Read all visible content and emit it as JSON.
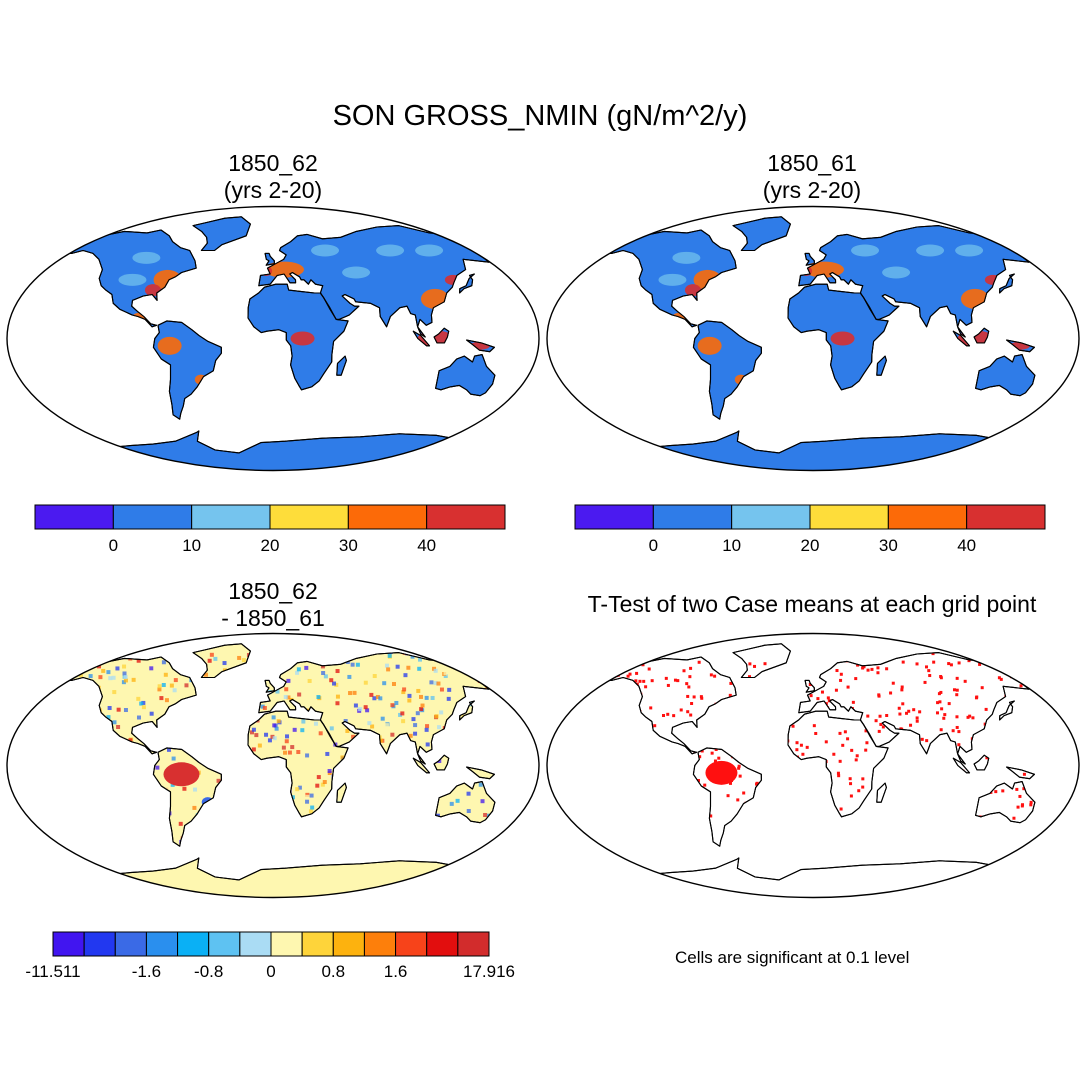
{
  "title": "SON GROSS_NMIN (gN/m^2/y)",
  "panels": [
    {
      "id": "p1",
      "title_line1": "1850_62",
      "title_line2": "(yrs 2-20)"
    },
    {
      "id": "p2",
      "title_line1": "1850_61",
      "title_line2": "(yrs 2-20)"
    },
    {
      "id": "p3",
      "title_line1": "1850_62",
      "title_line2": "- 1850_61"
    },
    {
      "id": "p4",
      "title_line1": "T-Test of two Case means at each grid point"
    }
  ],
  "colorbar_top": {
    "colors": [
      "#4b1af0",
      "#2f7ce8",
      "#75c4ee",
      "#fedd3a",
      "#fc6a08",
      "#d83030"
    ],
    "labels": [
      "0",
      "10",
      "20",
      "30",
      "40"
    ]
  },
  "colorbar_diff": {
    "colors": [
      "#4115f0",
      "#2238f0",
      "#3a6ae6",
      "#2a8fee",
      "#0ab0f5",
      "#5ec2f2",
      "#aadcf4",
      "#fef7b0",
      "#fed43a",
      "#fdb20e",
      "#fd7f0b",
      "#f7431a",
      "#e20e0e",
      "#d22c2c"
    ],
    "labels": [
      "-11.511",
      "-1.6",
      "-0.8",
      "0",
      "0.8",
      "1.6",
      "17.916"
    ]
  },
  "ttest_note": "Cells are significant at 0.1 level",
  "map_colors": {
    "ocean": "#ffffff",
    "land_base": "#2f7ce8",
    "land_high": "#fc6a08",
    "land_max": "#d83030",
    "diff_base": "#fef7b0",
    "diff_pos": "#d83030",
    "diff_neg": "#3a6ae6",
    "signif": "#ff1010"
  }
}
